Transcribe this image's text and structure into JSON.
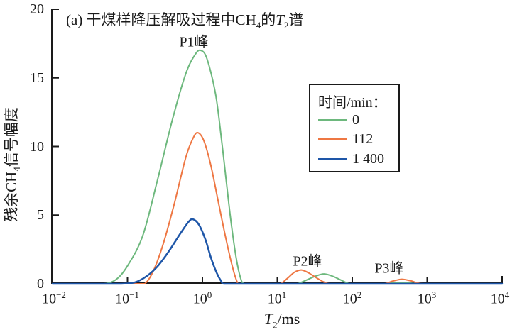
{
  "figure": {
    "title": {
      "prefix": "(a) 干煤样降压解吸过程中CH",
      "sub1": "4",
      "mid": "的",
      "var": "T",
      "sub2": "2",
      "suffix": "谱"
    }
  },
  "axes": {
    "y": {
      "label": {
        "pre": "残余CH",
        "sub": "4",
        "post": "信号幅度"
      },
      "ticks": [
        "0",
        "5",
        "10",
        "15",
        "20"
      ]
    },
    "x": {
      "label": {
        "var": "T",
        "sub": "2",
        "unit": "/ms"
      },
      "ticks": [
        {
          "base": "10",
          "exp": "−2"
        },
        {
          "base": "10",
          "exp": "−1"
        },
        {
          "base": "10",
          "exp": "0"
        },
        {
          "base": "10",
          "exp": "1"
        },
        {
          "base": "10",
          "exp": "2"
        },
        {
          "base": "10",
          "exp": "3"
        },
        {
          "base": "10",
          "exp": "4"
        }
      ]
    }
  },
  "legend": {
    "title": "时间/min："
  },
  "chart_data": {
    "type": "line",
    "title": "(a) 干煤样降压解吸过程中CH4的T2谱",
    "xlabel": "T2/ms",
    "ylabel": "残余CH4信号幅度",
    "xscale": "log",
    "xlim": [
      0.01,
      10000
    ],
    "ylim": [
      0,
      20
    ],
    "yticks": [
      0,
      5,
      10,
      15,
      20
    ],
    "grid": false,
    "legend_title": "时间/min：",
    "legend_position": "upper right",
    "annotations": [
      {
        "text": "P1峰",
        "near_t2_ms": 0.9
      },
      {
        "text": "P2峰",
        "near_t2_ms": 25
      },
      {
        "text": "P3峰",
        "near_t2_ms": 450
      }
    ],
    "series": [
      {
        "name": "0",
        "color": "#6db87d",
        "points": [
          [
            0.01,
            0
          ],
          [
            0.03,
            0
          ],
          [
            0.048,
            0
          ],
          [
            0.07,
            0.3
          ],
          [
            0.1,
            1.3
          ],
          [
            0.16,
            3.5
          ],
          [
            0.25,
            7.5
          ],
          [
            0.4,
            12.0
          ],
          [
            0.6,
            15.3
          ],
          [
            0.8,
            16.7
          ],
          [
            0.95,
            17.0
          ],
          [
            1.15,
            16.4
          ],
          [
            1.5,
            13.8
          ],
          [
            1.8,
            10.5
          ],
          [
            2.1,
            7.3
          ],
          [
            2.4,
            4.6
          ],
          [
            2.8,
            2.0
          ],
          [
            3.2,
            0.5
          ],
          [
            3.6,
            0
          ],
          [
            5,
            0
          ],
          [
            8,
            0
          ],
          [
            12,
            0
          ],
          [
            15,
            0
          ],
          [
            18.5,
            0
          ],
          [
            24,
            0.25
          ],
          [
            32,
            0.55
          ],
          [
            42,
            0.72
          ],
          [
            55,
            0.55
          ],
          [
            70,
            0.28
          ],
          [
            93,
            0
          ],
          [
            130,
            0
          ],
          [
            200,
            0
          ],
          [
            280,
            0
          ],
          [
            350,
            0.06
          ],
          [
            460,
            0.1
          ],
          [
            600,
            0.05
          ],
          [
            800,
            0
          ],
          [
            2000,
            0
          ],
          [
            10000,
            0
          ]
        ]
      },
      {
        "name": "112",
        "color": "#ee7743",
        "points": [
          [
            0.01,
            0
          ],
          [
            0.08,
            0
          ],
          [
            0.13,
            0
          ],
          [
            0.17,
            0
          ],
          [
            0.22,
            0.9
          ],
          [
            0.3,
            2.9
          ],
          [
            0.42,
            5.8
          ],
          [
            0.6,
            9.2
          ],
          [
            0.75,
            10.6
          ],
          [
            0.87,
            11.0
          ],
          [
            1.05,
            10.4
          ],
          [
            1.3,
            8.6
          ],
          [
            1.6,
            6.2
          ],
          [
            2.0,
            3.6
          ],
          [
            2.5,
            1.3
          ],
          [
            2.9,
            0.15
          ],
          [
            3.1,
            0
          ],
          [
            5,
            0
          ],
          [
            7,
            0
          ],
          [
            9,
            0
          ],
          [
            11,
            0
          ],
          [
            14,
            0.45
          ],
          [
            17,
            0.85
          ],
          [
            21,
            1.0
          ],
          [
            26,
            0.8
          ],
          [
            33,
            0.45
          ],
          [
            41,
            0.15
          ],
          [
            50,
            0
          ],
          [
            70,
            0
          ],
          [
            120,
            0
          ],
          [
            200,
            0
          ],
          [
            270,
            0
          ],
          [
            350,
            0.2
          ],
          [
            460,
            0.33
          ],
          [
            600,
            0.22
          ],
          [
            880,
            0
          ],
          [
            2000,
            0
          ],
          [
            5000,
            0
          ],
          [
            10000,
            0
          ]
        ]
      },
      {
        "name": "1 400",
        "color": "#1e56a8",
        "points": [
          [
            0.01,
            0
          ],
          [
            0.04,
            0
          ],
          [
            0.08,
            0
          ],
          [
            0.125,
            0.1
          ],
          [
            0.18,
            0.55
          ],
          [
            0.25,
            1.25
          ],
          [
            0.35,
            2.3
          ],
          [
            0.5,
            3.6
          ],
          [
            0.65,
            4.5
          ],
          [
            0.75,
            4.7
          ],
          [
            0.9,
            4.3
          ],
          [
            1.1,
            3.2
          ],
          [
            1.3,
            1.9
          ],
          [
            1.55,
            0.8
          ],
          [
            1.8,
            0.15
          ],
          [
            1.95,
            0
          ],
          [
            3,
            0
          ],
          [
            10,
            0
          ],
          [
            50,
            0
          ],
          [
            200,
            0
          ],
          [
            1000,
            0
          ],
          [
            5000,
            0
          ],
          [
            10000,
            0
          ]
        ]
      }
    ]
  }
}
